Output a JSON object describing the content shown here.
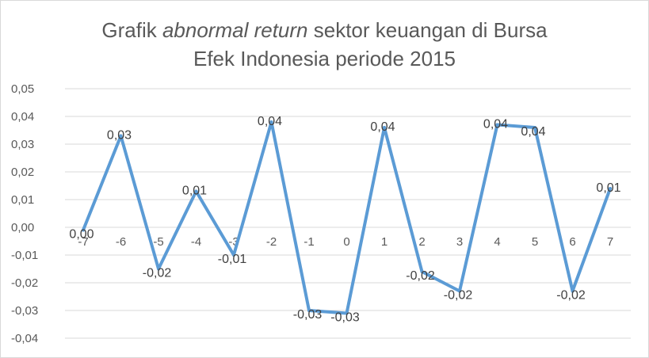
{
  "chart_data": {
    "type": "line",
    "title": {
      "part1": "Grafik ",
      "part2": "abnormal return",
      "part3": " sektor keuangan di Bursa",
      "line2": "Efek Indonesia periode 2015"
    },
    "xlabel": "",
    "ylabel": "",
    "categories": [
      "-7",
      "-6",
      "-5",
      "-4",
      "-3",
      "-2",
      "-1",
      "0",
      "1",
      "2",
      "3",
      "4",
      "5",
      "6",
      "7"
    ],
    "values": [
      -0.001,
      0.033,
      -0.015,
      0.013,
      -0.01,
      0.038,
      -0.03,
      -0.031,
      0.036,
      -0.016,
      -0.023,
      0.037,
      0.036,
      -0.023,
      0.014
    ],
    "data_labels": [
      "0,00",
      "0,03",
      "-0,02",
      "0,01",
      "-0,01",
      "0,04",
      "-0,03",
      "-0,03",
      "0,04",
      "-0,02",
      "-0,02",
      "0,04",
      "0,04",
      "-0,02",
      "0,01"
    ],
    "y_ticks": [
      "0,05",
      "0,04",
      "0,03",
      "0,02",
      "0,01",
      "0,00",
      "-0,01",
      "-0,02",
      "-0,03",
      "-0,04"
    ],
    "ylim": [
      -0.04,
      0.05
    ],
    "grid": true,
    "line_color": "#5b9bd5",
    "grid_color": "#d9d9d9"
  }
}
